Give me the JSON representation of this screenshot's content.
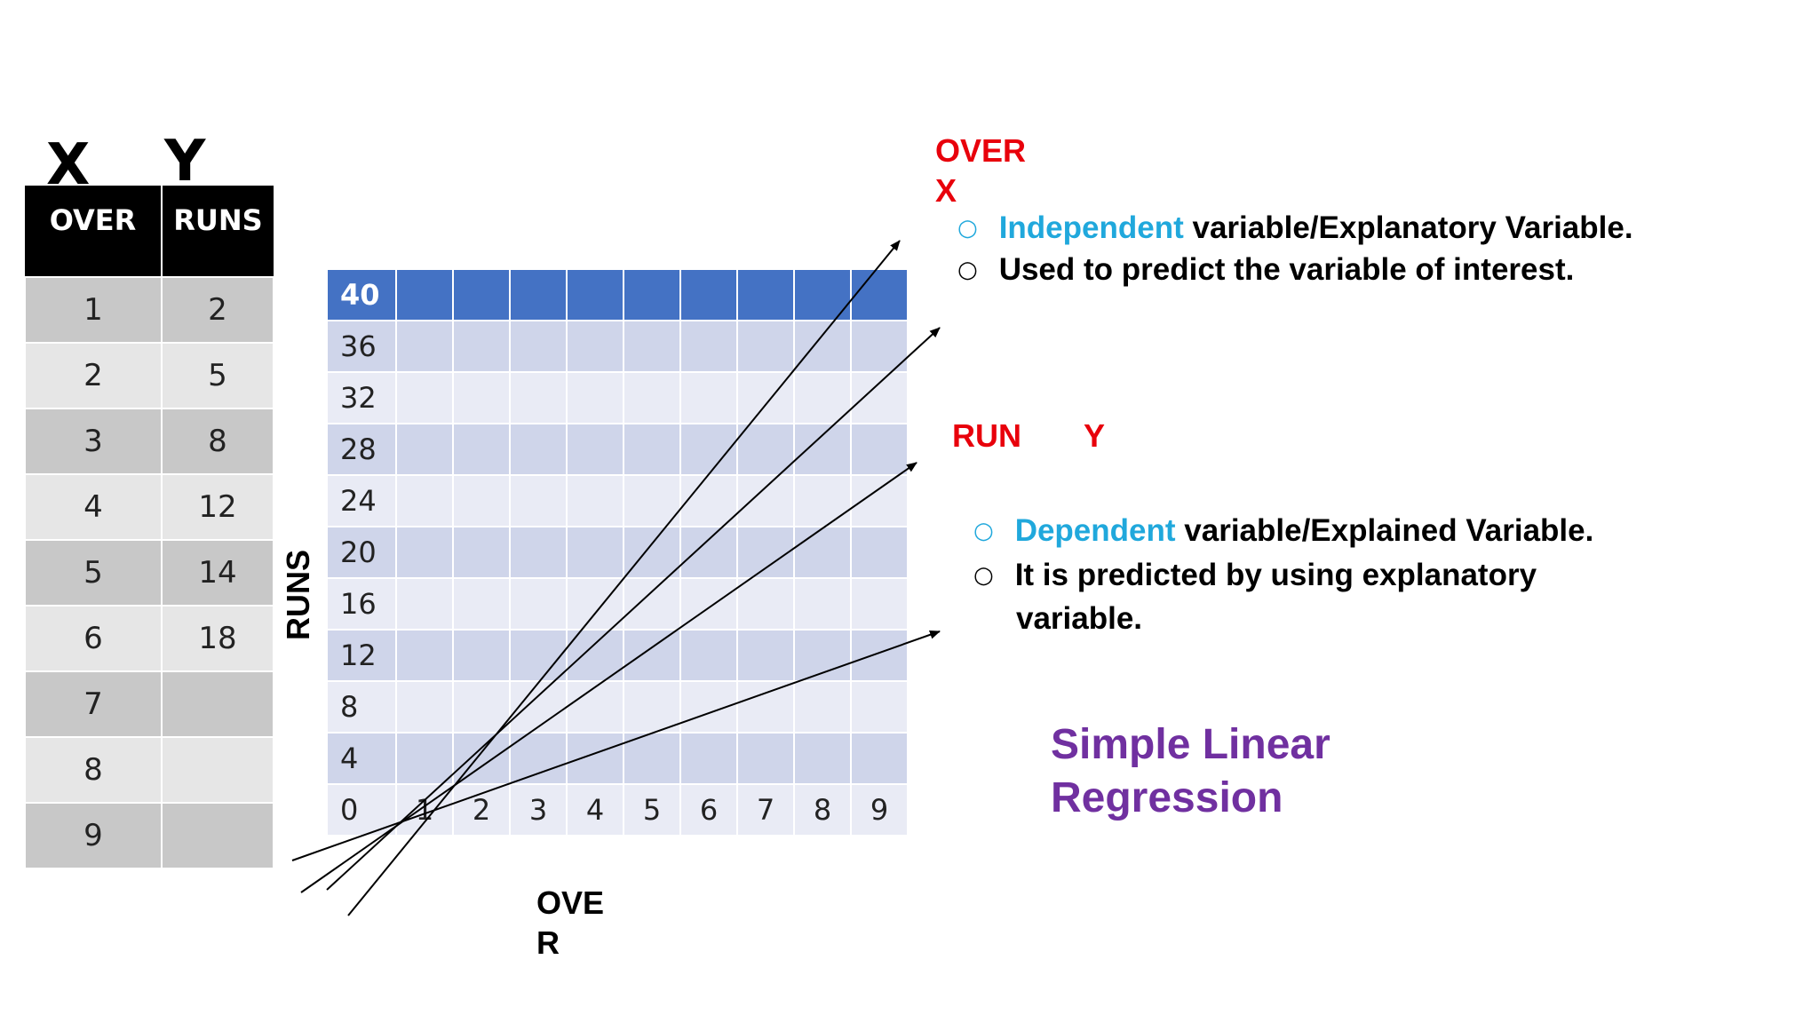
{
  "header": {
    "x_letter": "X",
    "y_letter": "Y"
  },
  "table": {
    "headers": [
      "OVER",
      "RUNS"
    ],
    "rows": [
      [
        "1",
        "2"
      ],
      [
        "2",
        "5"
      ],
      [
        "3",
        "8"
      ],
      [
        "4",
        "12"
      ],
      [
        "5",
        "14"
      ],
      [
        "6",
        "18"
      ],
      [
        "7",
        ""
      ],
      [
        "8",
        ""
      ],
      [
        "9",
        ""
      ]
    ]
  },
  "grid": {
    "y_labels": [
      "40",
      "36",
      "32",
      "28",
      "24",
      "20",
      "16",
      "12",
      "8",
      "4"
    ],
    "x_labels": [
      "0",
      "1",
      "2",
      "3",
      "4",
      "5",
      "6",
      "7",
      "8",
      "9"
    ],
    "y_axis_label": "RUNS",
    "x_axis_label": "OVER"
  },
  "over_section": {
    "title_line1": "OVER",
    "title_line2": "X",
    "bullet1_highlight": "Independent",
    "bullet1_rest": " variable/Explanatory Variable.",
    "bullet2": "Used to predict the variable of interest."
  },
  "run_section": {
    "title": "RUN",
    "letter": "Y",
    "bullet1_highlight": "Dependent",
    "bullet1_rest": " variable/Explained Variable.",
    "bullet2_line1": "It is predicted by using explanatory",
    "bullet2_line2": "variable."
  },
  "caption": {
    "line1": "Simple Linear",
    "line2": "Regression"
  },
  "colors": {
    "header_bg": "#000000",
    "grid_header": "#4472c4",
    "red": "#e8000b",
    "cyan": "#20a8dc",
    "purple": "#7030a0"
  }
}
